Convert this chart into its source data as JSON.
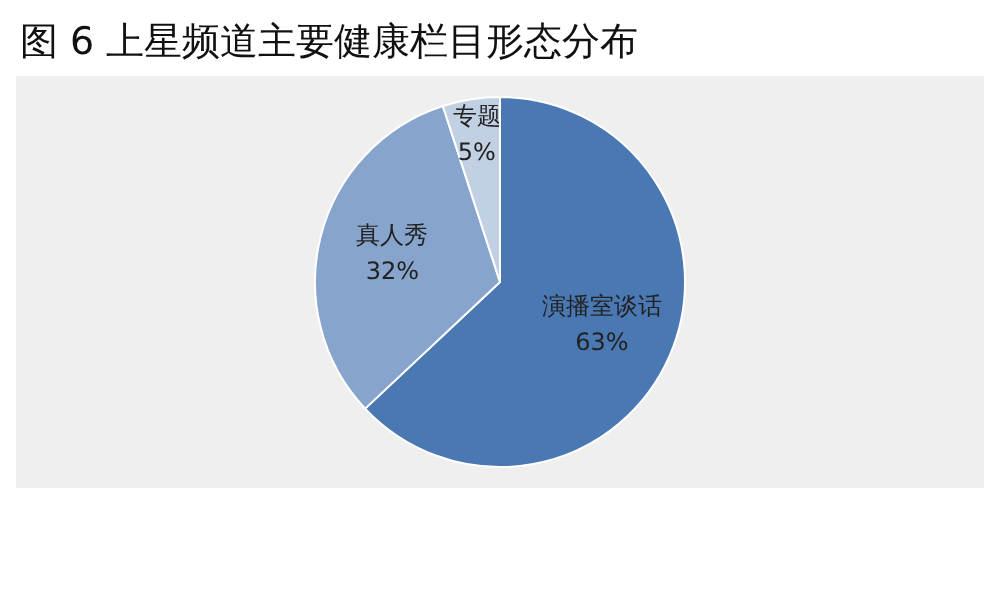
{
  "chart_data": {
    "type": "pie",
    "title": "图 6 上星频道主要健康栏目形态分布",
    "categories": [
      "演播室谈话",
      "真人秀",
      "专题"
    ],
    "values": [
      63,
      32,
      5
    ],
    "colors": [
      "#4a78b2",
      "#87a4cc",
      "#c2d0e4"
    ],
    "value_labels": [
      "63%",
      "32%",
      "5%"
    ],
    "legend": false
  }
}
